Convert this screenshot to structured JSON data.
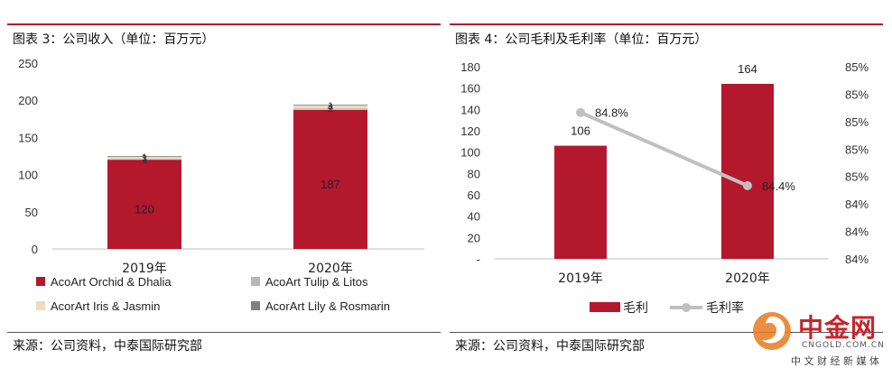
{
  "left_panel": {
    "title": "图表 3：公司收入（单位：百万元）",
    "source": "来源：公司资料，中泰国际研究部"
  },
  "right_panel": {
    "title": "图表 4：公司毛利及毛利率（单位：百万元）",
    "source": "来源：公司资料，中泰国际研究部"
  },
  "watermark": {
    "brand": "中金网",
    "url": "CNGOLD.COM.CN",
    "tagline": "中 文 财 经 新 媒 体"
  },
  "colors": {
    "red": "#b3182d",
    "tulip_grey": "#b7b7b7",
    "iris_beige": "#ecdcbc",
    "lily_grey": "#808080",
    "margin_line": "#c0c0c0"
  },
  "chart_data": [
    {
      "type": "bar",
      "stacked": true,
      "categories": [
        "2019年",
        "2020年"
      ],
      "series": [
        {
          "name": "AcoArt Orchid & Dhalia",
          "values": [
            120,
            187
          ],
          "labels": [
            "120",
            "187"
          ]
        },
        {
          "name": "AcoArt Tulip & Litos",
          "values": [
            1,
            2
          ],
          "labels": [
            "1",
            "2"
          ]
        },
        {
          "name": "AcorArt Iris & Jasmin",
          "values": [
            3,
            4
          ],
          "labels": [
            "3",
            "4"
          ]
        },
        {
          "name": "AcorArt Lily & Rosmarin",
          "values": [
            1,
            1
          ],
          "labels": [
            "1",
            "1"
          ]
        }
      ],
      "yticks": [
        "0",
        "50",
        "100",
        "150",
        "200",
        "250"
      ],
      "ylim": [
        0,
        250
      ],
      "legend_position": "bottom"
    },
    {
      "type": "bar+line",
      "categories": [
        "2019年",
        "2020年"
      ],
      "bar_series": {
        "name": "毛利",
        "values": [
          106,
          164
        ],
        "labels": [
          "106",
          "164"
        ]
      },
      "line_series": {
        "name": "毛利率",
        "values": [
          84.8,
          84.4
        ],
        "labels": [
          "84.8%",
          "84.4%"
        ]
      },
      "y_left_ticks": [
        "-",
        "20",
        "40",
        "60",
        "80",
        "100",
        "120",
        "140",
        "160",
        "180"
      ],
      "y_left_lim": [
        0,
        180
      ],
      "y_right_ticks": [
        "84%",
        "84%",
        "84%",
        "85%",
        "85%",
        "85%",
        "85%",
        "85%"
      ],
      "y_right_lim": [
        84.0,
        85.05
      ],
      "legend_position": "bottom"
    }
  ]
}
